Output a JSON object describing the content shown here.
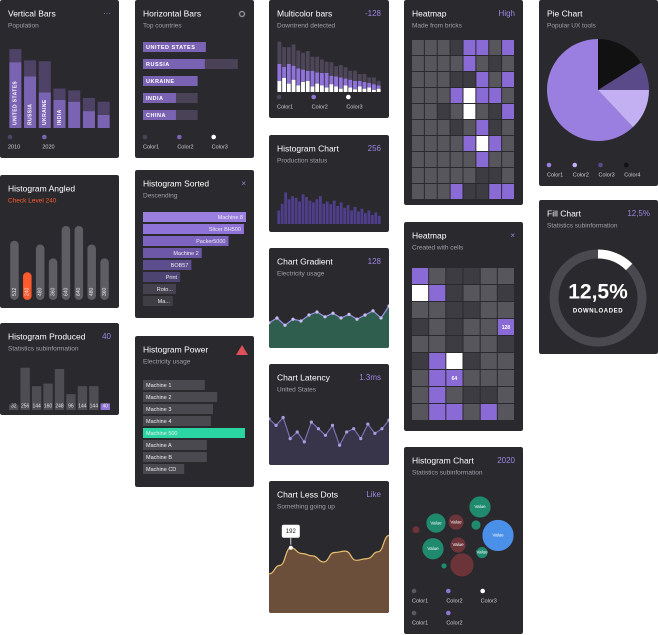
{
  "chart_data": [
    {
      "type": "bar",
      "title": "Vertical Bars",
      "badge": "···",
      "subtitle": "Population",
      "stacked": true,
      "categories": [
        "UNITED STATES",
        "RUSSIA",
        "UKRAINE",
        "INDIA",
        null,
        null,
        null
      ],
      "series": [
        {
          "name": "2010",
          "color": "#4e4266",
          "values": [
            14,
            17,
            33,
            12,
            12,
            14,
            14
          ]
        },
        {
          "name": "2020",
          "color": "#7b63b3",
          "values": [
            70,
            55,
            38,
            30,
            28,
            18,
            14
          ]
        }
      ],
      "ylim": [
        0,
        100
      ]
    },
    {
      "type": "bar",
      "title": "Histogram Angled",
      "subtitle": "Check Level 240",
      "subtitle_color": "#ff5a2e",
      "values": [
        512,
        240,
        480,
        360,
        640,
        640,
        480,
        360
      ],
      "colors": [
        "#5e5d63",
        "#ff5a2e",
        "#5e5d63",
        "#5e5d63",
        "#5e5d63",
        "#5e5d63",
        "#5e5d63",
        "#5e5d63"
      ],
      "ylim": [
        0,
        700
      ],
      "show_values": true,
      "rounded": true
    },
    {
      "type": "bar",
      "title": "Histogram Produced",
      "badge": "40",
      "subtitle": "Statistics subinformation",
      "values": [
        32,
        256,
        144,
        160,
        248,
        96,
        144,
        144,
        40
      ],
      "colors": [
        "#4e4d53",
        "#4e4d53",
        "#4e4d53",
        "#4e4d53",
        "#4e4d53",
        "#4e4d53",
        "#4e4d53",
        "#4e4d53",
        "#8f73d9"
      ],
      "ylim": [
        0,
        260
      ],
      "show_values": true
    },
    {
      "type": "hbar",
      "title": "Horizontal Bars",
      "subtitle": "Top countries",
      "categories": [
        "UNITED STATES",
        "RUSSIA",
        "UKRAINE",
        "INDIA",
        "CHINA"
      ],
      "series": [
        {
          "name": "Color1",
          "color": "#4a4358",
          "values": [
            61,
            92,
            53,
            53,
            53
          ]
        },
        {
          "name": "Color2",
          "color": "#7b63b3",
          "values": [
            61,
            60,
            53,
            32,
            32
          ]
        },
        {
          "name": "Color3",
          "color": "#ffffff",
          "values": [
            null,
            null,
            null,
            null,
            null
          ]
        }
      ],
      "xlim": [
        0,
        100
      ]
    },
    {
      "type": "hbar",
      "title": "Histogram Sorted",
      "badge": "×",
      "subtitle": "Descending",
      "categories": [
        "Machine 8",
        "Slicer BH500",
        "Packer5000",
        "Machine 2",
        "BOB57",
        "Print",
        "Roto...",
        "Ma..."
      ],
      "values": [
        100,
        98,
        83,
        57,
        47,
        36,
        32,
        29
      ],
      "colors": [
        "#9b7fe0",
        "#8f73d9",
        "#7d64c0",
        "#6d58a8",
        "#5c4d8c",
        "#4e4472",
        "#45414f",
        "#3f3e45"
      ],
      "xlim": [
        0,
        100
      ],
      "label_align": "end"
    },
    {
      "type": "hbar",
      "title": "Histogram Power",
      "subtitle": "Electricity usage",
      "categories": [
        "Machine 1",
        "Machine 2",
        "Machine 3",
        "Machine 4",
        "Machine 500",
        "Machine A",
        "Machine B",
        "Machine CD"
      ],
      "values": [
        60,
        72,
        68,
        66,
        99,
        62,
        62,
        40
      ],
      "colors": [
        "#4a494f",
        "#4a494f",
        "#4a494f",
        "#4a494f",
        "#2bd4a3",
        "#4a494f",
        "#4a494f",
        "#4a494f"
      ],
      "xlim": [
        0,
        100
      ],
      "label_align": "start"
    },
    {
      "type": "bar",
      "title": "Multicolor bars",
      "badge": "-128",
      "subtitle": "Downtrend detected",
      "stacked": true,
      "series": [
        {
          "name": "Color1",
          "color": "#4d4658",
          "values": [
            40,
            35,
            30,
            38,
            32,
            30,
            35,
            25,
            28,
            24,
            20,
            24,
            18,
            22,
            20,
            16,
            18,
            12,
            14,
            10,
            12,
            8
          ]
        },
        {
          "name": "Color2",
          "color": "#8f73d9",
          "values": [
            30,
            20,
            35,
            25,
            30,
            22,
            18,
            28,
            20,
            22,
            26,
            15,
            18,
            20,
            12,
            14,
            15,
            10,
            12,
            8,
            10,
            6
          ]
        },
        {
          "name": "Color3",
          "color": "#ffffff",
          "values": [
            20,
            25,
            15,
            22,
            12,
            18,
            20,
            10,
            15,
            12,
            8,
            14,
            10,
            6,
            12,
            8,
            5,
            10,
            6,
            8,
            4,
            6
          ]
        }
      ],
      "ylim": [
        0,
        100
      ]
    },
    {
      "type": "bar",
      "title": "Histogram Chart",
      "badge": "256",
      "subtitle": "Production status",
      "color": "#4f3f8a",
      "values": [
        30,
        45,
        70,
        55,
        62,
        58,
        50,
        66,
        60,
        52,
        48,
        55,
        62,
        45,
        50,
        44,
        52,
        40,
        48,
        36,
        42,
        30,
        38,
        28,
        34,
        24,
        30,
        20,
        26,
        18
      ],
      "ylim": [
        0,
        100
      ]
    },
    {
      "type": "area",
      "title": "Chart Gradient",
      "badge": "128",
      "subtitle": "Electricity usage",
      "values": [
        42,
        50,
        38,
        48,
        45,
        55,
        60,
        52,
        58,
        50,
        56,
        48,
        55,
        62,
        50,
        70
      ],
      "ylim": [
        0,
        100
      ],
      "color": "#9d90e6",
      "fill": "#2f5e4e",
      "dots": true,
      "dot_color": "#c9c2f0"
    },
    {
      "type": "area",
      "title": "Chart Latency",
      "badge": "1.3ms",
      "subtitle": "United States",
      "values": [
        70,
        60,
        72,
        40,
        50,
        35,
        65,
        55,
        45,
        60,
        30,
        50,
        55,
        40,
        62,
        48,
        55,
        68
      ],
      "ylim": [
        0,
        100
      ],
      "color": "#7a6fb0",
      "fill": "#38344a",
      "dots": true,
      "dot_color": "#a79ee0"
    },
    {
      "type": "area",
      "title": "Chart Less Dots",
      "badge": "Like",
      "subtitle": "Something going up",
      "values": [
        115,
        140,
        192,
        175,
        168,
        150,
        178,
        182,
        155,
        160,
        180,
        228
      ],
      "value_labels": [
        null,
        null,
        "192",
        null,
        null,
        null,
        null,
        null,
        null,
        null,
        null,
        null
      ],
      "ylim": [
        0,
        300
      ],
      "color": "#e8c070",
      "fill": "#6b4f3a",
      "smooth": true
    },
    {
      "type": "heatmap",
      "title": "Heatmap",
      "badge": "High",
      "subtitle": "Made from bricks",
      "colors": [
        "#3d3c42",
        "#57565c",
        "#8a6bd6",
        "#ffffff"
      ],
      "values": [
        [
          1,
          1,
          1,
          0,
          2,
          2,
          1,
          2
        ],
        [
          1,
          1,
          1,
          1,
          2,
          1,
          0,
          1
        ],
        [
          1,
          1,
          1,
          0,
          0,
          2,
          1,
          2
        ],
        [
          1,
          1,
          1,
          2,
          3,
          2,
          2,
          1
        ],
        [
          1,
          1,
          0,
          1,
          3,
          1,
          0,
          2
        ],
        [
          1,
          1,
          1,
          0,
          1,
          2,
          0,
          1
        ],
        [
          1,
          1,
          1,
          1,
          2,
          3,
          2,
          1
        ],
        [
          1,
          1,
          1,
          1,
          1,
          2,
          1,
          1
        ],
        [
          1,
          1,
          1,
          1,
          1,
          0,
          0,
          1
        ],
        [
          1,
          1,
          1,
          2,
          0,
          0,
          2,
          2
        ]
      ]
    },
    {
      "type": "heatmap",
      "title": "Heatmap",
      "badge": "×",
      "subtitle": "Created with cells",
      "colors": [
        "#3d3c42",
        "#57565c",
        "#8a6bd6",
        "#ffffff"
      ],
      "values": [
        [
          2,
          1,
          0,
          0,
          1,
          1
        ],
        [
          3,
          2,
          0,
          1,
          1,
          0
        ],
        [
          1,
          1,
          0,
          0,
          1,
          1
        ],
        [
          0,
          1,
          0,
          1,
          1,
          2
        ],
        [
          1,
          1,
          0,
          1,
          1,
          0
        ],
        [
          0,
          2,
          3,
          0,
          1,
          1
        ],
        [
          1,
          2,
          2,
          1,
          1,
          1
        ],
        [
          1,
          2,
          1,
          0,
          0,
          1
        ],
        [
          1,
          2,
          2,
          1,
          2,
          1
        ]
      ],
      "annotations": [
        {
          "text": "128",
          "row": 3,
          "col": 5
        },
        {
          "text": "64",
          "row": 6,
          "col": 2
        }
      ]
    },
    {
      "type": "bubble",
      "title": "Histogram Chart",
      "badge": "2020",
      "subtitle": "Statistics subinformation",
      "x": [
        76,
        32,
        52,
        72,
        94,
        12,
        29,
        54,
        78,
        58,
        40
      ],
      "values": [
        79,
        62,
        63,
        60,
        49,
        55,
        35,
        39,
        31,
        18,
        17
      ],
      "sizes": [
        11,
        10,
        8,
        5,
        16,
        4,
        11,
        8,
        6,
        12,
        3
      ],
      "colors": [
        "#1f8a6e",
        "#1f8a6e",
        "#6b3438",
        "#1f8a6e",
        "#4a90e8",
        "#6b3438",
        "#1f8a6e",
        "#6b3438",
        "#1f8a6e",
        "#6b3438",
        "#1f8a6e"
      ],
      "labels": [
        "Value",
        "Value",
        "Value",
        null,
        "Value",
        null,
        "Value",
        "Value",
        "Value",
        null,
        null
      ],
      "xlim": [
        0,
        119
      ],
      "ylim": [
        0,
        100
      ],
      "legend": [
        {
          "name": "Color1",
          "color": "#5a5960"
        },
        {
          "name": "Color2",
          "color": "#8f73d9"
        },
        {
          "name": "Color3",
          "color": "#ffffff"
        },
        {
          "name": "Color1",
          "color": "#5a5960"
        },
        {
          "name": "Color2",
          "color": "#8f73d9"
        }
      ]
    },
    {
      "type": "pie",
      "title": "Pie Chart",
      "subtitle": "Popular UX tools",
      "categories": [
        "Color1",
        "Color2",
        "Color3",
        "Color4"
      ],
      "values": [
        62,
        13,
        9,
        16
      ],
      "colors": [
        "#9b7fe0",
        "#c3b0f2",
        "#5b4a8a",
        "#111111"
      ],
      "direction": "counterclockwise"
    },
    {
      "type": "gauge",
      "title": "Fill Chart",
      "badge": "12,5%",
      "subtitle": "Statistics subinformation",
      "values": [
        12.5
      ],
      "value_labels": [
        "12,5%"
      ],
      "ylim": [
        0,
        100
      ],
      "label": "DOWNLOADED"
    }
  ]
}
